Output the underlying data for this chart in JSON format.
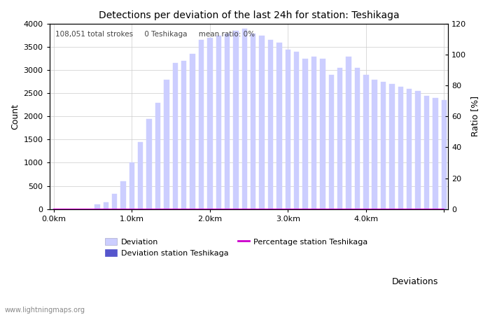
{
  "title": "Detections per deviation of the last 24h for station: Teshikaga",
  "subtitle": "108,051 total strokes     0 Teshikaga     mean ratio: 0%",
  "xlabel": "Deviations",
  "ylabel_left": "Count",
  "ylabel_right": "Ratio [%]",
  "ylim_left": [
    0,
    4000
  ],
  "ylim_right": [
    0,
    120
  ],
  "xtick_positions": [
    0,
    9,
    18,
    27,
    36,
    45
  ],
  "xtick_labels": [
    "0.0km",
    "1.0km",
    "2.0km",
    "3.0km",
    "4.0km",
    ""
  ],
  "ytick_left": [
    0,
    500,
    1000,
    1500,
    2000,
    2500,
    3000,
    3500,
    4000
  ],
  "ytick_right": [
    0,
    20,
    40,
    60,
    80,
    100,
    120
  ],
  "bar_values": [
    0,
    0,
    0,
    0,
    0,
    100,
    150,
    320,
    600,
    1000,
    1450,
    1950,
    2300,
    2800,
    3150,
    3200,
    3350,
    3650,
    3700,
    3750,
    3800,
    3850,
    3900,
    3800,
    3750,
    3650,
    3600,
    3450,
    3400,
    3250,
    3300,
    3250,
    2900,
    3050,
    3300,
    3050,
    2900,
    2800,
    2750,
    2700,
    2650,
    2600,
    2550,
    2450,
    2400,
    2350
  ],
  "station_bar_values": [
    0,
    0,
    0,
    0,
    0,
    0,
    0,
    0,
    0,
    0,
    0,
    0,
    0,
    0,
    0,
    0,
    0,
    0,
    0,
    0,
    0,
    0,
    0,
    0,
    0,
    0,
    0,
    0,
    0,
    0,
    0,
    0,
    0,
    0,
    0,
    0,
    0,
    0,
    0,
    0,
    0,
    0,
    0,
    0,
    0,
    0
  ],
  "percentage_values": [
    0,
    0,
    0,
    0,
    0,
    0,
    0,
    0,
    0,
    0,
    0,
    0,
    0,
    0,
    0,
    0,
    0,
    0,
    0,
    0,
    0,
    0,
    0,
    0,
    0,
    0,
    0,
    0,
    0,
    0,
    0,
    0,
    0,
    0,
    0,
    0,
    0,
    0,
    0,
    0,
    0,
    0,
    0,
    0,
    0,
    0
  ],
  "bar_color": "#ccceff",
  "station_bar_color": "#5555cc",
  "percentage_color": "#cc00cc",
  "background_color": "#ffffff",
  "grid_color": "#cccccc",
  "watermark": "www.lightningmaps.org",
  "legend_deviation": "Deviation",
  "legend_station": "Deviation station Teshikaga",
  "legend_percentage": "Percentage station Teshikaga"
}
